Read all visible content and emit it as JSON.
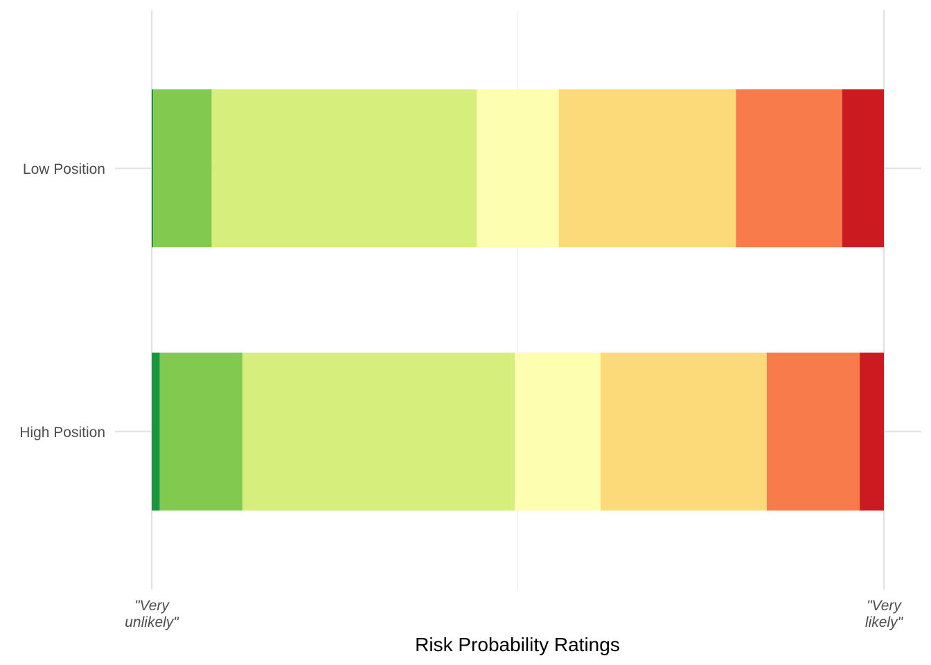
{
  "chart_data": {
    "type": "bar",
    "orientation": "horizontal",
    "stacked": true,
    "normalized": true,
    "xlabel": "Risk Probability Ratings",
    "ylabel": "",
    "xlim": [
      0,
      1
    ],
    "grid": true,
    "legend": "none",
    "x_tick_labels": [
      {
        "value": 0,
        "lines": [
          "\"Very",
          "unlikely\""
        ]
      },
      {
        "value": 1,
        "lines": [
          "\"Very",
          "likely\""
        ]
      }
    ],
    "categories": [
      "Low Position",
      "High Position"
    ],
    "series": [
      {
        "color": "#1a9641",
        "values": [
          0.002,
          0.011
        ]
      },
      {
        "color": "#82c94f",
        "values": [
          0.08,
          0.113
        ]
      },
      {
        "color": "#d6ee7b",
        "values": [
          0.362,
          0.372
        ]
      },
      {
        "color": "#fdfeb0",
        "values": [
          0.112,
          0.117
        ]
      },
      {
        "color": "#fcda7a",
        "values": [
          0.242,
          0.227
        ]
      },
      {
        "color": "#f77b4b",
        "values": [
          0.145,
          0.127
        ]
      },
      {
        "color": "#cb1b20",
        "values": [
          0.057,
          0.033
        ]
      }
    ]
  }
}
